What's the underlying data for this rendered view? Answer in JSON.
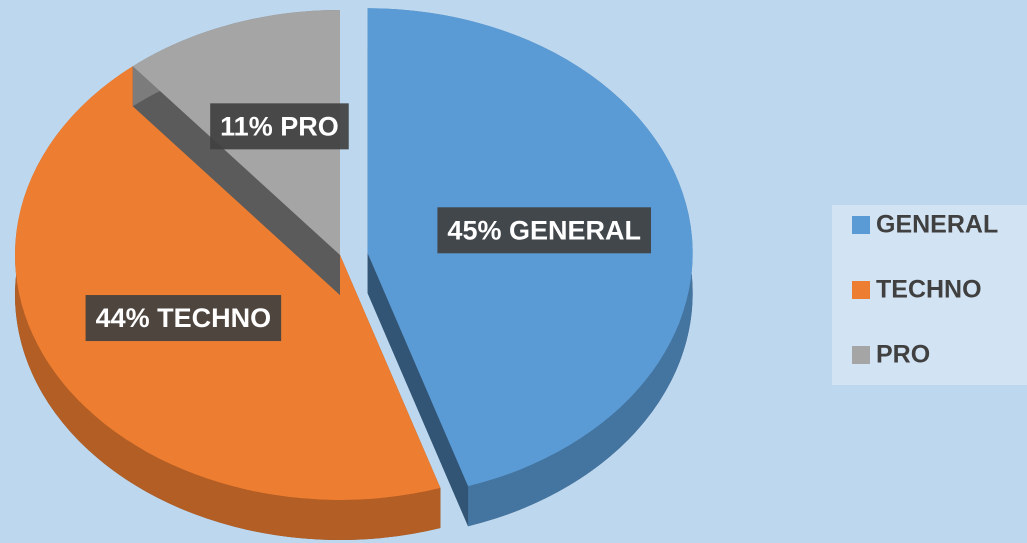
{
  "chart_data": {
    "type": "pie",
    "categories": [
      "GENERAL",
      "TECHNO",
      "PRO"
    ],
    "values": [
      45,
      44,
      11
    ],
    "value_labels": [
      "45% GENERAL",
      "44% TECHNO",
      "11% PRO"
    ],
    "colors": [
      "#5b9bd5",
      "#ed7d31",
      "#a5a5a5"
    ],
    "legend": "right"
  }
}
